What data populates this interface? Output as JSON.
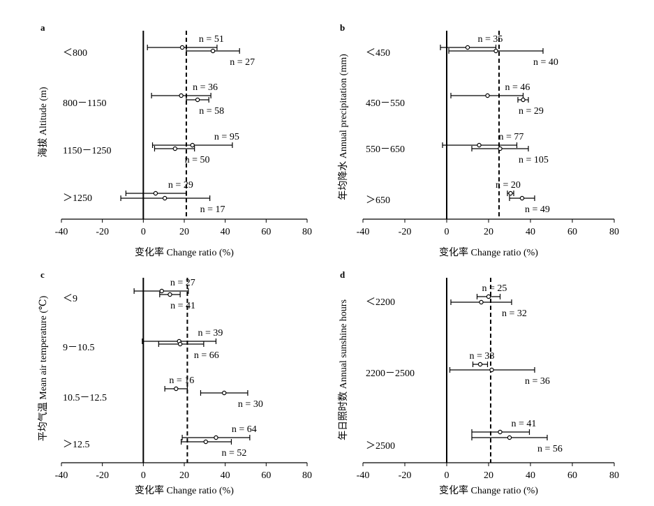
{
  "chart_data": [
    {
      "panel": "a",
      "type": "errorbar-forest",
      "ylabel": "海拔 Altitude (m)",
      "xlabel": "变化率 Change ratio (%)",
      "xlim": [
        -40,
        80
      ],
      "xticks": [
        "-40",
        "-20",
        "0",
        "20",
        "40",
        "60",
        "80"
      ],
      "reference_line": 21,
      "groups": [
        {
          "label": "＜800",
          "rows": [
            {
              "n_label": "n = 51",
              "mean": 19,
              "lo": 2,
              "hi": 36
            },
            {
              "n_label": "n = 27",
              "mean": 34,
              "lo": 21,
              "hi": 47
            }
          ]
        },
        {
          "label": "800－1150",
          "rows": [
            {
              "n_label": "n = 36",
              "mean": 18.5,
              "lo": 4,
              "hi": 33
            },
            {
              "n_label": "n = 58",
              "mean": 26.5,
              "lo": 21,
              "hi": 32
            }
          ]
        },
        {
          "label": "1150－1250",
          "rows": [
            {
              "n_label": "n = 95",
              "mean": 24,
              "lo": 4.5,
              "hi": 43.5
            },
            {
              "n_label": "n = 50",
              "mean": 15.5,
              "lo": 5.5,
              "hi": 25
            }
          ]
        },
        {
          "label": "＞1250",
          "rows": [
            {
              "n_label": "n = 29",
              "mean": 6,
              "lo": -8.5,
              "hi": 21
            },
            {
              "n_label": "n = 17",
              "mean": 10.5,
              "lo": -11,
              "hi": 32.5
            }
          ]
        }
      ]
    },
    {
      "panel": "b",
      "type": "errorbar-forest",
      "ylabel": "年均降水 Annual precipitation (mm)",
      "xlabel": "变化率 Change ratio (%)",
      "xlim": [
        -40,
        80
      ],
      "xticks": [
        "-40",
        "-20",
        "0",
        "20",
        "40",
        "60",
        "80"
      ],
      "reference_line": 25,
      "groups": [
        {
          "label": "＜450",
          "rows": [
            {
              "n_label": "n = 35",
              "mean": 10,
              "lo": -3,
              "hi": 23.5
            },
            {
              "n_label": "n = 40",
              "mean": 23.5,
              "lo": 1,
              "hi": 46
            }
          ]
        },
        {
          "label": "450－550",
          "rows": [
            {
              "n_label": "n = 46",
              "mean": 19.5,
              "lo": 2,
              "hi": 36.5
            },
            {
              "n_label": "n = 29",
              "mean": 36.5,
              "lo": 34,
              "hi": 39
            }
          ]
        },
        {
          "label": "550－650",
          "rows": [
            {
              "n_label": "n = 77",
              "mean": 15.5,
              "lo": -2,
              "hi": 33.5
            },
            {
              "n_label": "n = 105",
              "mean": 25.5,
              "lo": 12,
              "hi": 39
            }
          ]
        },
        {
          "label": "＞650",
          "rows": [
            {
              "n_label": "n = 20",
              "mean": 30.5,
              "lo": 29,
              "hi": 32
            },
            {
              "n_label": "n = 49",
              "mean": 36,
              "lo": 30,
              "hi": 42
            }
          ]
        }
      ]
    },
    {
      "panel": "c",
      "type": "errorbar-forest",
      "ylabel": "平均气温 Mean air temperature (℃)",
      "xlabel": "变化率 Change ratio (%)",
      "xlim": [
        -40,
        80
      ],
      "xticks": [
        "-40",
        "-20",
        "0",
        "20",
        "40",
        "60",
        "80"
      ],
      "reference_line": 21.5,
      "groups": [
        {
          "label": "＜9",
          "rows": [
            {
              "n_label": "n = 27",
              "mean": 9,
              "lo": -4.5,
              "hi": 22
            },
            {
              "n_label": "n = 41",
              "mean": 13,
              "lo": 8,
              "hi": 18
            }
          ]
        },
        {
          "label": "9－10.5",
          "rows": [
            {
              "n_label": "n = 39",
              "mean": 17.5,
              "lo": -0.5,
              "hi": 35.5
            },
            {
              "n_label": "n = 66",
              "mean": 18,
              "lo": 7.5,
              "hi": 29.5
            }
          ]
        },
        {
          "label": "10.5－12.5",
          "rows": [
            {
              "n_label": "n = 16",
              "mean": 16,
              "lo": 10.5,
              "hi": 21.5
            },
            {
              "n_label": "n = 30",
              "mean": 39.5,
              "lo": 28,
              "hi": 51
            }
          ]
        },
        {
          "label": "＞12.5",
          "rows": [
            {
              "n_label": "n = 64",
              "mean": 35.5,
              "lo": 19,
              "hi": 52
            },
            {
              "n_label": "n = 52",
              "mean": 30.5,
              "lo": 18.5,
              "hi": 43
            }
          ]
        }
      ]
    },
    {
      "panel": "d",
      "type": "errorbar-forest",
      "ylabel": "年日照时数 Annual sunshine hours",
      "xlabel": "变化率 Change ratio (%)",
      "xlim": [
        -40,
        80
      ],
      "xticks": [
        "-40",
        "-20",
        "0",
        "20",
        "40",
        "60",
        "80"
      ],
      "reference_line": 21,
      "groups": [
        {
          "label": "＜2200",
          "rows": [
            {
              "n_label": "n = 25",
              "mean": 20,
              "lo": 14.5,
              "hi": 25.5
            },
            {
              "n_label": "n = 32",
              "mean": 16.5,
              "lo": 2,
              "hi": 31
            }
          ]
        },
        {
          "label": "2200－2500",
          "rows": [
            {
              "n_label": "n = 38",
              "mean": 16,
              "lo": 12.5,
              "hi": 19.5
            },
            {
              "n_label": "n = 36",
              "mean": 21.5,
              "lo": 1.5,
              "hi": 42
            }
          ]
        },
        {
          "label": "＞2500",
          "rows": [
            {
              "n_label": "n = 41",
              "mean": 25.5,
              "lo": 12,
              "hi": 39.5
            },
            {
              "n_label": "n = 56",
              "mean": 30,
              "lo": 12,
              "hi": 48
            }
          ]
        }
      ]
    }
  ]
}
